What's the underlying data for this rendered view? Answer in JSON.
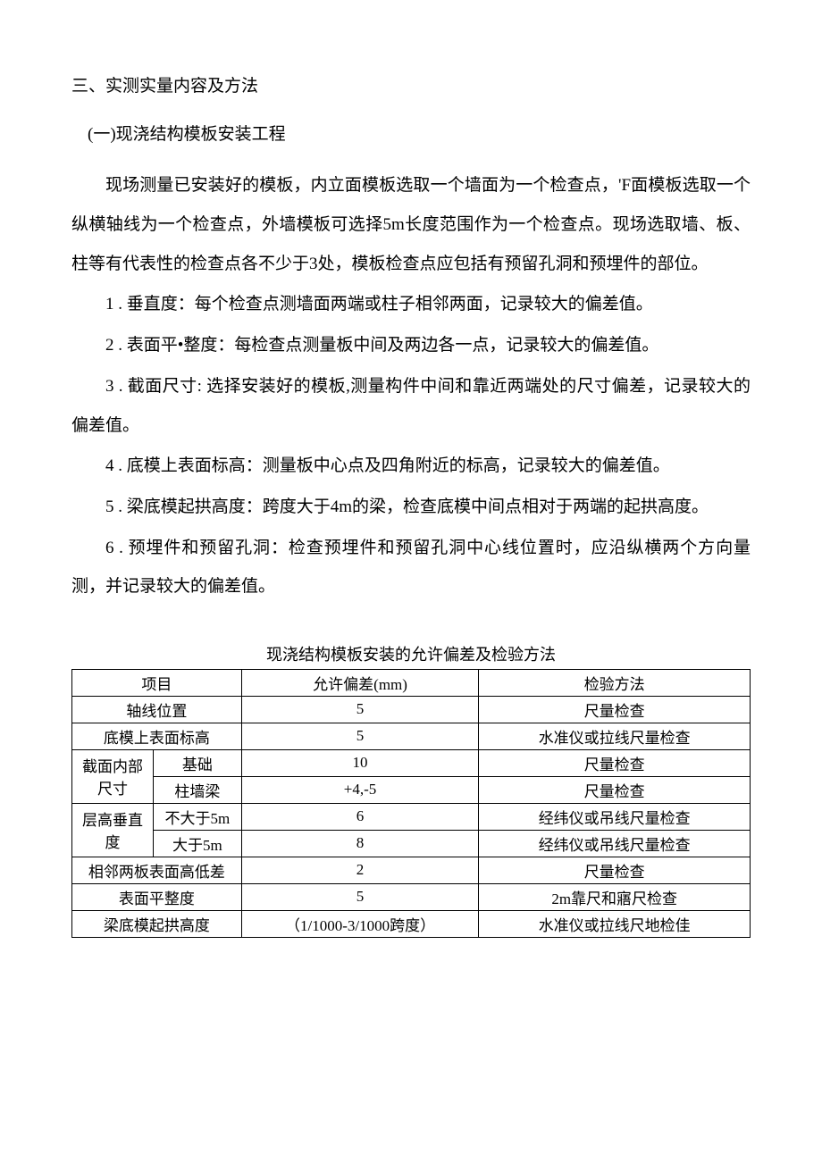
{
  "headings": {
    "section_main": "三、实测实量内容及方法",
    "subsection_1": "(一)现浇结构模板安装工程"
  },
  "paragraphs": {
    "intro": "现场测量已安装好的模板，内立面模板选取一个墙面为一个检查点，'F面模板选取一个纵横轴线为一个检查点，外墙模板可选择5m长度范围作为一个检查点。现场选取墙、板、柱等有代表性的检查点各不少于3处，模板检查点应包括有预留孔洞和预埋件的部位。",
    "item_1": "1 . 垂直度：每个检查点测墙面两端或柱子相邻两面，记录较大的偏差值。",
    "item_2": "2 . 表面平•整度：每检查点测量板中间及两边各一点，记录较大的偏差值。",
    "item_3": "3 . 截面尺寸: 选择安装好的模板,测量构件中间和靠近两端处的尺寸偏差，记录较大的偏差值。",
    "item_4": "4 . 底模上表面标高：测量板中心点及四角附近的标高，记录较大的偏差值。",
    "item_5": "5 . 梁底模起拱高度：跨度大于4m的梁，检查底模中间点相对于两端的起拱高度。",
    "item_6": "6 . 预埋件和预留孔洞：检查预埋件和预留孔洞中心线位置时，应沿纵横两个方向量测，并记录较大的偏差值。"
  },
  "table": {
    "title": "现浇结构模板安装的允许偏差及检验方法",
    "headers": {
      "project": "项目",
      "deviation": "允许偏差(mm)",
      "method": "检验方法"
    },
    "rows": {
      "r1": {
        "project": "轴线位置",
        "deviation": "5",
        "method": "尺量检查"
      },
      "r2": {
        "project": "底模上表面标高",
        "deviation": "5",
        "method": "水准仪或拉线尺量检查"
      },
      "r3": {
        "project_group": "截面内部尺寸",
        "sub": "基础",
        "deviation": "10",
        "method": "尺量检查"
      },
      "r4": {
        "sub": "柱墙梁",
        "deviation": "+4,-5",
        "method": "尺量检查"
      },
      "r5": {
        "project_group": "层高垂直度",
        "sub": "不大于5m",
        "deviation": "6",
        "method": "经纬仪或吊线尺量检查"
      },
      "r6": {
        "sub": "大于5m",
        "deviation": "8",
        "method": "经纬仪或吊线尺量检查"
      },
      "r7": {
        "project": "相邻两板表面高低差",
        "deviation": "2",
        "method": "尺量检查"
      },
      "r8": {
        "project": "表面平整度",
        "deviation": "5",
        "method": "2m靠尺和寤尺检查"
      },
      "r9": {
        "project": "梁底模起拱高度",
        "deviation": "（1/1000-3/1000跨度）",
        "method": "水准仪或拉线尺地检佳"
      }
    }
  }
}
